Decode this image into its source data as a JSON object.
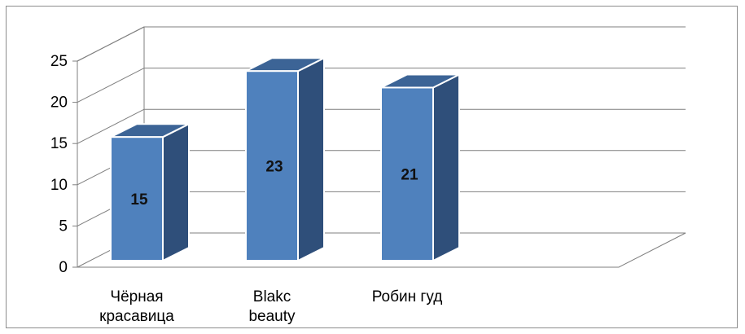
{
  "chart_data": {
    "type": "bar",
    "style": "3d-column",
    "categories": [
      [
        "Чёрная",
        "красавица"
      ],
      [
        "Blakc",
        "beauty"
      ],
      [
        "Робин гуд"
      ]
    ],
    "values": [
      15,
      23,
      21
    ],
    "data_labels": [
      "15",
      "23",
      "21"
    ],
    "yticks": [
      "0",
      "5",
      "10",
      "15",
      "20",
      "25"
    ],
    "ylim": [
      0,
      25
    ],
    "grid": true,
    "legend": "none",
    "colors": {
      "front": "#4f81bd",
      "side": "#2f4f7a",
      "top": "#3c6496",
      "outline": "#ffffff",
      "grid": "#7f7f7f"
    }
  }
}
